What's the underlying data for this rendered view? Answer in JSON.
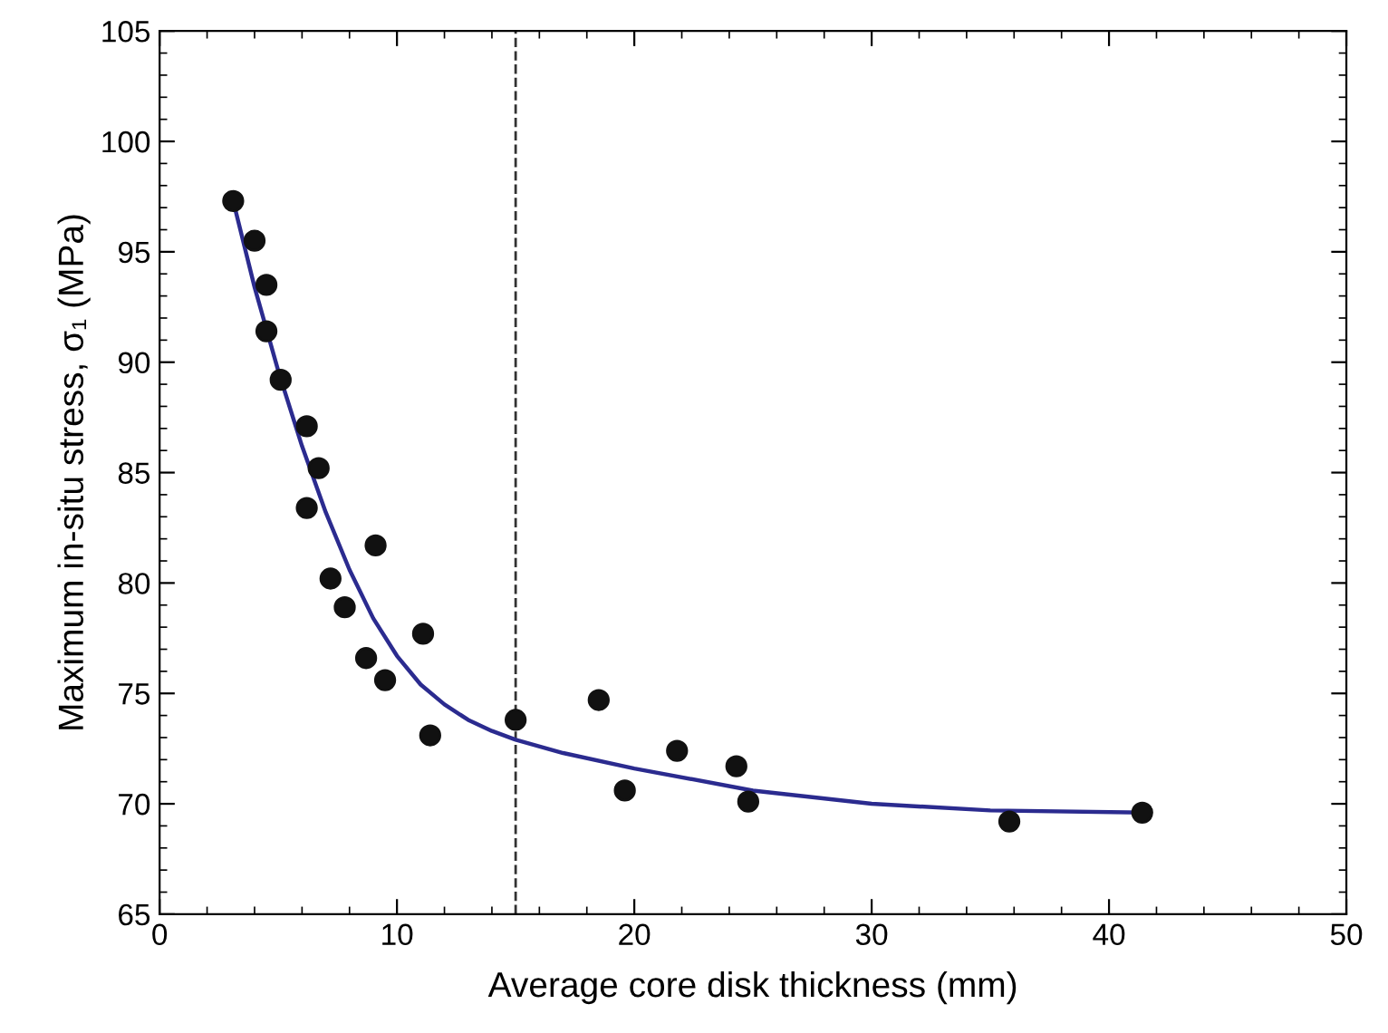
{
  "chart_data": {
    "type": "scatter",
    "xlabel": "Average core disk thickness (mm)",
    "ylabel": "Maximum in-situ stress, σ₁ (MPa)",
    "xlim": [
      0,
      50
    ],
    "xticks": [
      0,
      10,
      20,
      30,
      40,
      50
    ],
    "ylim": [
      65,
      105
    ],
    "yticks": [
      65,
      70,
      75,
      80,
      85,
      90,
      95,
      100,
      105
    ],
    "grid": false,
    "legend": false,
    "series": [
      {
        "color": "#111111",
        "marker": "circle",
        "x": [
          3.1,
          4.0,
          4.5,
          4.5,
          5.1,
          6.2,
          6.7,
          6.2,
          9.1,
          7.2,
          7.8,
          8.7,
          9.5,
          11.1,
          11.4,
          15.0,
          18.5,
          19.6,
          21.8,
          24.3,
          24.8,
          35.8,
          41.4
        ],
        "values": [
          97.3,
          95.5,
          93.5,
          91.4,
          89.2,
          87.1,
          85.2,
          83.4,
          81.7,
          80.2,
          78.9,
          76.6,
          75.6,
          77.7,
          73.1,
          73.8,
          74.7,
          70.6,
          72.4,
          71.7,
          70.1,
          69.2,
          69.6
        ]
      },
      {
        "type": "line",
        "color": "#2b2b8f",
        "marker": "none",
        "line_style": "solid",
        "x": [
          3.1,
          4,
          5,
          6,
          7,
          8,
          9,
          10,
          11,
          12,
          13,
          14,
          15,
          17,
          20,
          25,
          30,
          35,
          41.4
        ],
        "values": [
          97.3,
          93.4,
          89.6,
          86.2,
          83.2,
          80.6,
          78.4,
          76.7,
          75.4,
          74.5,
          73.8,
          73.3,
          72.9,
          72.3,
          71.6,
          70.6,
          70.0,
          69.7,
          69.6
        ]
      }
    ],
    "ref_lines": [
      {
        "axis": "x",
        "value": 15,
        "color": "#333333",
        "line_style": "dashed"
      }
    ]
  }
}
